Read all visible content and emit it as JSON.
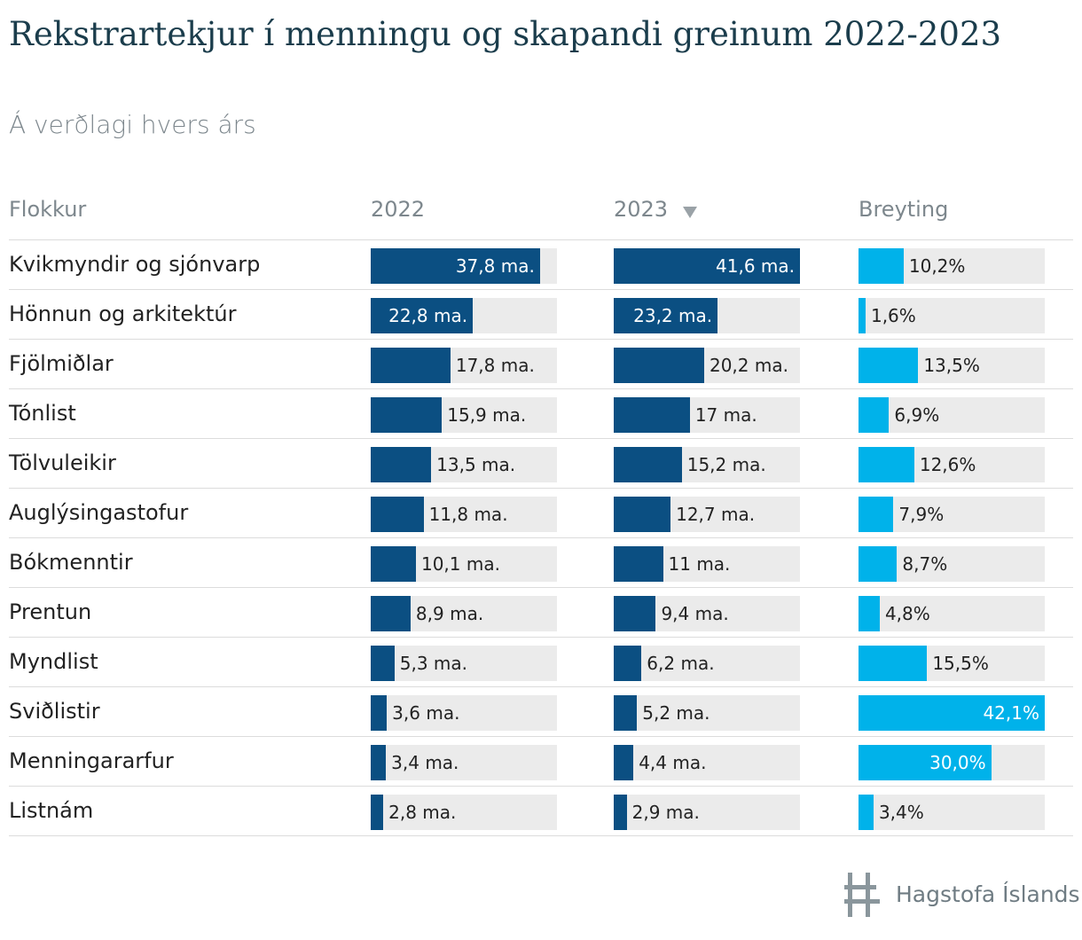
{
  "header": {
    "title": "Rekstrartekjur í menningu og skapandi greinum 2022-2023",
    "subtitle": "Á verðlagi hvers árs"
  },
  "table": {
    "columns": [
      "Flokkur",
      "2022",
      "2023",
      "Breyting"
    ],
    "colors": [
      "#0b4f82",
      "#0b4f82",
      "#00b2ea"
    ],
    "rows": [
      {
        "category": "Kvikmyndir og sjónvarp",
        "values": [
          37.8,
          41.6,
          10.2
        ],
        "value_labels": [
          "37,8 ma.",
          "41,6 ma.",
          "10,2%"
        ]
      },
      {
        "category": "Hönnun og arkitektúr",
        "values": [
          22.8,
          23.2,
          1.6
        ],
        "value_labels": [
          "22,8 ma.",
          "23,2 ma.",
          "1,6%"
        ]
      },
      {
        "category": "Fjölmiðlar",
        "values": [
          17.8,
          20.2,
          13.5
        ],
        "value_labels": [
          "17,8 ma.",
          "20,2 ma.",
          "13,5%"
        ]
      },
      {
        "category": "Tónlist",
        "values": [
          15.9,
          17,
          6.9
        ],
        "value_labels": [
          "15,9 ma.",
          "17 ma.",
          "6,9%"
        ]
      },
      {
        "category": "Tölvuleikir",
        "values": [
          13.5,
          15.2,
          12.6
        ],
        "value_labels": [
          "13,5 ma.",
          "15,2 ma.",
          "12,6%"
        ]
      },
      {
        "category": "Auglýsingastofur",
        "values": [
          11.8,
          12.7,
          7.9
        ],
        "value_labels": [
          "11,8 ma.",
          "12,7 ma.",
          "7,9%"
        ]
      },
      {
        "category": "Bókmenntir",
        "values": [
          10.1,
          11,
          8.7
        ],
        "value_labels": [
          "10,1 ma.",
          "11 ma.",
          "8,7%"
        ]
      },
      {
        "category": "Prentun",
        "values": [
          8.9,
          9.4,
          4.8
        ],
        "value_labels": [
          "8,9 ma.",
          "9,4 ma.",
          "4,8%"
        ]
      },
      {
        "category": "Myndlist",
        "values": [
          5.3,
          6.2,
          15.5
        ],
        "value_labels": [
          "5,3 ma.",
          "6,2 ma.",
          "15,5%"
        ]
      },
      {
        "category": "Sviðlistir",
        "values": [
          3.6,
          5.2,
          42.1
        ],
        "value_labels": [
          "3,6 ma.",
          "5,2 ma.",
          "42,1%"
        ]
      },
      {
        "category": "Menningararfur",
        "values": [
          3.4,
          4.4,
          30.0
        ],
        "value_labels": [
          "3,4 ma.",
          "4,4 ma.",
          "30,0%"
        ]
      },
      {
        "category": "Listnám",
        "values": [
          2.8,
          2.9,
          3.4
        ],
        "value_labels": [
          "2,8 ma.",
          "2,9 ma.",
          "3,4%"
        ]
      }
    ]
  },
  "footer": {
    "logo_text": "Hagstofa Íslands"
  }
}
